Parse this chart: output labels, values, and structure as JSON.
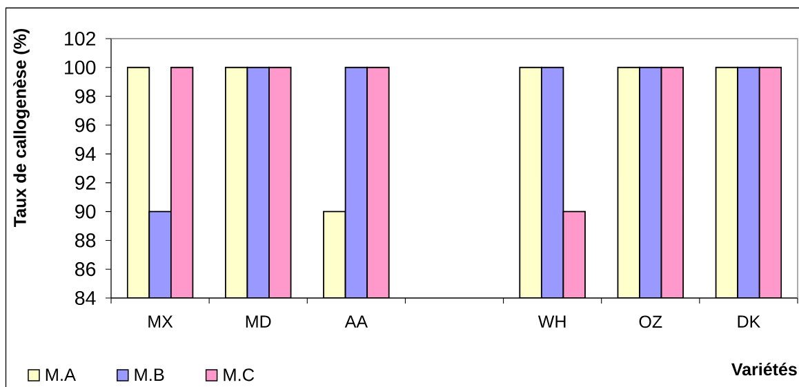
{
  "chart_data": {
    "type": "bar",
    "xlabel": "Variétés",
    "ylabel": "Taux de callogenèse (%)",
    "categories": [
      "MX",
      "MD",
      "AA",
      null,
      "WH",
      "OZ",
      "DK"
    ],
    "series": [
      {
        "name": "M.A",
        "color": "#ffffcc",
        "values": [
          100,
          100,
          90,
          null,
          100,
          100,
          100
        ]
      },
      {
        "name": "M.B",
        "color": "#9999ff",
        "values": [
          90,
          100,
          100,
          null,
          100,
          100,
          100
        ]
      },
      {
        "name": "M.C",
        "color": "#ff99cc",
        "values": [
          100,
          100,
          100,
          null,
          90,
          100,
          100
        ]
      }
    ],
    "ylim": [
      84,
      102
    ],
    "yticks": [
      84,
      86,
      88,
      90,
      92,
      94,
      96,
      98,
      100,
      102
    ],
    "legend": "bottom left"
  }
}
